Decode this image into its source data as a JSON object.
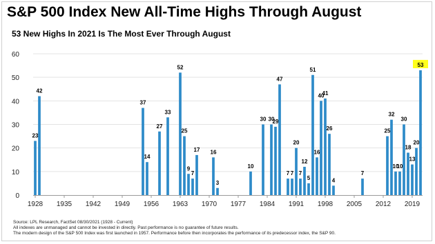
{
  "title": "S&P 500 Index New All-Time Highs Through August",
  "subtitle": "53 New Highs In 2021 Is The Most Ever Through August",
  "footer": {
    "line1": "Source: LPL Research, FactSet 08/30/2021 (1928 - Current)",
    "line2": "All indexes are unmanaged and cannot be invested in directly. Past performance is no guarantee of future results.",
    "line3": "The modern design of the S&P 500 Index was first launched in 1957. Performance before then incorporates the performance of its predecessor index, the S&P 90."
  },
  "colors": {
    "bar": "#2e8bc9",
    "highlight_label_bg": "#ffff1a",
    "grid": "#e3e3e3",
    "axis": "#9a9a9a"
  },
  "chart_data": {
    "type": "bar",
    "title": "S&P 500 Index New All-Time Highs Through August",
    "subtitle": "53 New Highs In 2021 Is The Most Ever Through August",
    "xlabel": "",
    "ylabel": "",
    "xlim": [
      1928,
      2021
    ],
    "ylim": [
      0,
      60
    ],
    "yticks": [
      0,
      10,
      20,
      30,
      40,
      50,
      60
    ],
    "xticks": [
      1928,
      1935,
      1942,
      1949,
      1956,
      1963,
      1970,
      1977,
      1984,
      1991,
      1998,
      2005,
      2012,
      2019
    ],
    "grid": "horizontal",
    "highlight_year": 2021,
    "points": [
      {
        "year": 1928,
        "value": 23
      },
      {
        "year": 1929,
        "value": 42
      },
      {
        "year": 1954,
        "value": 37
      },
      {
        "year": 1955,
        "value": 14
      },
      {
        "year": 1958,
        "value": 27
      },
      {
        "year": 1960,
        "value": 33
      },
      {
        "year": 1963,
        "value": 52
      },
      {
        "year": 1964,
        "value": 25
      },
      {
        "year": 1965,
        "value": 9
      },
      {
        "year": 1966,
        "value": 7
      },
      {
        "year": 1967,
        "value": 17
      },
      {
        "year": 1971,
        "value": 16
      },
      {
        "year": 1972,
        "value": 3
      },
      {
        "year": 1980,
        "value": 10
      },
      {
        "year": 1983,
        "value": 30
      },
      {
        "year": 1985,
        "value": 30
      },
      {
        "year": 1986,
        "value": 29
      },
      {
        "year": 1987,
        "value": 47
      },
      {
        "year": 1989,
        "value": 7
      },
      {
        "year": 1990,
        "value": 7
      },
      {
        "year": 1991,
        "value": 20
      },
      {
        "year": 1992,
        "value": 7
      },
      {
        "year": 1993,
        "value": 12
      },
      {
        "year": 1994,
        "value": 5
      },
      {
        "year": 1995,
        "value": 51
      },
      {
        "year": 1996,
        "value": 16
      },
      {
        "year": 1997,
        "value": 40
      },
      {
        "year": 1998,
        "value": 41
      },
      {
        "year": 1999,
        "value": 26
      },
      {
        "year": 2000,
        "value": 4
      },
      {
        "year": 2007,
        "value": 7
      },
      {
        "year": 2013,
        "value": 25
      },
      {
        "year": 2014,
        "value": 32
      },
      {
        "year": 2015,
        "value": 10
      },
      {
        "year": 2016,
        "value": 10
      },
      {
        "year": 2017,
        "value": 30
      },
      {
        "year": 2018,
        "value": 18
      },
      {
        "year": 2019,
        "value": 13
      },
      {
        "year": 2020,
        "value": 20
      },
      {
        "year": 2021,
        "value": 53
      }
    ]
  }
}
